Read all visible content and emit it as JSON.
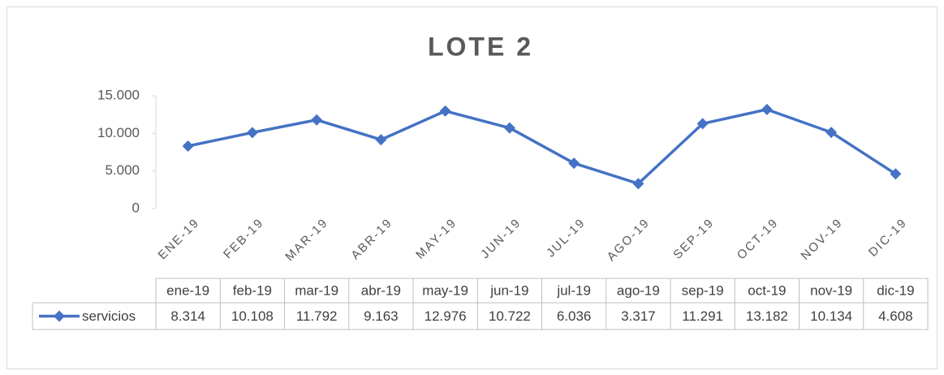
{
  "chart_data": {
    "type": "line",
    "title": "LOTE 2",
    "categories": [
      "ENE-19",
      "FEB-19",
      "MAR-19",
      "ABR-19",
      "MAY-19",
      "JUN-19",
      "JUL-19",
      "AGO-19",
      "SEP-19",
      "OCT-19",
      "NOV-19",
      "DIC-19"
    ],
    "table_columns": [
      "ene-19",
      "feb-19",
      "mar-19",
      "abr-19",
      "may-19",
      "jun-19",
      "jul-19",
      "ago-19",
      "sep-19",
      "oct-19",
      "nov-19",
      "dic-19"
    ],
    "series": [
      {
        "name": "servicios",
        "color": "#4472c4",
        "values": [
          8314,
          10108,
          11792,
          9163,
          12976,
          10722,
          6036,
          3317,
          11291,
          13182,
          10134,
          4608
        ],
        "value_labels": [
          "8.314",
          "10.108",
          "11.792",
          "9.163",
          "12.976",
          "10.722",
          "6.036",
          "3.317",
          "11.291",
          "13.182",
          "10.134",
          "4.608"
        ]
      }
    ],
    "ylim": [
      0,
      15000
    ],
    "yticks": [
      0,
      {
        "value": 5000,
        "label": "5.000"
      },
      {
        "value": 10000,
        "label": "10.000"
      },
      {
        "value": 15000,
        "label": "15.000"
      }
    ],
    "grid": false
  }
}
